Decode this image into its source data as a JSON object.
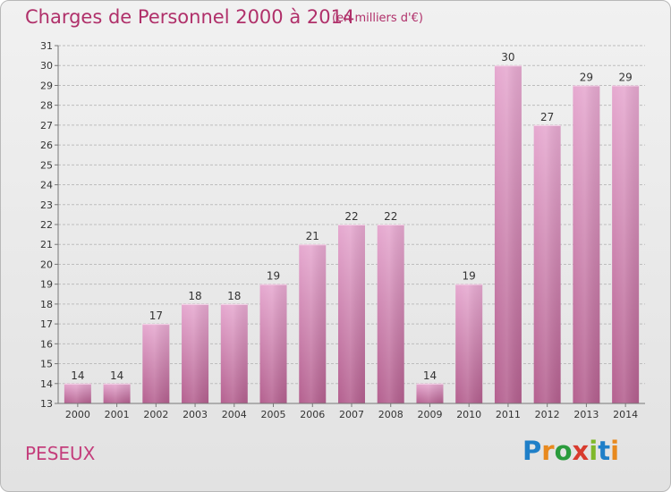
{
  "header": {
    "title": "Charges de Personnel 2000 à 2014",
    "subtitle": "(en milliers d'€)"
  },
  "footer": {
    "place": "PESEUX",
    "logo_text": "Proxiti"
  },
  "colors": {
    "title": "#b0306a",
    "bar_top": "#e6a9d0",
    "bar_bottom": "#b4608f",
    "grid": "#bdbdbd"
  },
  "chart_data": {
    "type": "bar",
    "categories": [
      "2000",
      "2001",
      "2002",
      "2003",
      "2004",
      "2005",
      "2006",
      "2007",
      "2008",
      "2009",
      "2010",
      "2011",
      "2012",
      "2013",
      "2014"
    ],
    "values": [
      14,
      14,
      17,
      18,
      18,
      19,
      21,
      22,
      22,
      14,
      19,
      30,
      27,
      29,
      29
    ],
    "title": "Charges de Personnel 2000 à 2014",
    "subtitle": "(en milliers d'€)",
    "xlabel": "",
    "ylabel": "",
    "ylim": [
      13,
      31
    ],
    "yticks": [
      13,
      14,
      15,
      16,
      17,
      18,
      19,
      20,
      21,
      22,
      23,
      24,
      25,
      26,
      27,
      28,
      29,
      30,
      31
    ],
    "grid": true,
    "data_labels": true
  }
}
